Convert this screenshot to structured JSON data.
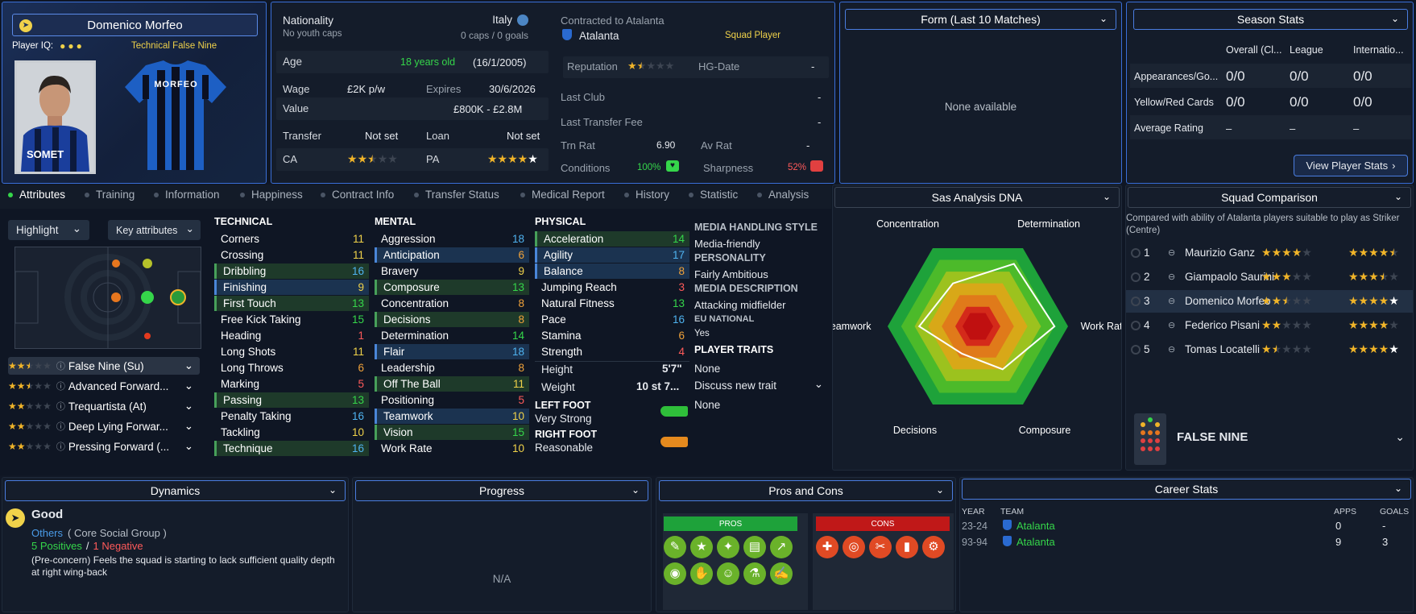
{
  "player": {
    "name": "Domenico Morfeo",
    "iq_label": "Player IQ:",
    "position_label": "Technical False Nine",
    "shirt_name": "MORFEO"
  },
  "nationality": {
    "label": "Nationality",
    "value": "Italy",
    "youth": "No youth caps",
    "caps": "0 caps / 0 goals"
  },
  "contract": {
    "label": "Contracted to Atalanta",
    "club": "Atalanta",
    "status": "Squad Player"
  },
  "info": {
    "age_label": "Age",
    "age_value": "18 years old",
    "dob": "(16/1/2005)",
    "wage_label": "Wage",
    "wage": "£2K p/w",
    "expires_label": "Expires",
    "expires": "30/6/2026",
    "value_label": "Value",
    "value": "£800K - £2.8M",
    "transfer_label": "Transfer",
    "transfer": "Not set",
    "loan_label": "Loan",
    "loan": "Not set",
    "ca_label": "CA",
    "pa_label": "PA",
    "ca_stars": 2.5,
    "pa_stars": 5
  },
  "club_info": {
    "reputation_label": "Reputation",
    "reputation_stars": 1.5,
    "hg_label": "HG-Date",
    "hg_value": "-",
    "last_club_label": "Last Club",
    "last_club": "-",
    "fee_label": "Last Transfer Fee",
    "fee": "-",
    "trn_label": "Trn Rat",
    "trn": "6.90",
    "av_label": "Av Rat",
    "av": "-",
    "cond_label": "Conditions",
    "cond": "100%",
    "sharp_label": "Sharpness",
    "sharp": "52%"
  },
  "form": {
    "title": "Form (Last 10 Matches)",
    "empty": "None available"
  },
  "season": {
    "title": "Season Stats",
    "headers": [
      "Overall (Cl...",
      "League",
      "Internatio..."
    ],
    "rows": [
      {
        "label": "Appearances/Go...",
        "values": [
          "0/0",
          "0/0",
          "0/0"
        ]
      },
      {
        "label": "Yellow/Red Cards",
        "values": [
          "0/0",
          "0/0",
          "0/0"
        ]
      },
      {
        "label": "Average Rating",
        "values": [
          "–",
          "–",
          "–"
        ]
      }
    ],
    "button": "View Player Stats"
  },
  "tabs": [
    "Attributes",
    "Training",
    "Information",
    "Happiness",
    "Contract Info",
    "Transfer Status",
    "Medical Report",
    "History",
    "Statistic",
    "Analysis"
  ],
  "controls": {
    "highlight": "Highlight",
    "key": "Key attributes"
  },
  "technical": {
    "title": "TECHNICAL",
    "items": [
      {
        "n": "Corners",
        "v": "11"
      },
      {
        "n": "Crossing",
        "v": "11"
      },
      {
        "n": "Dribbling",
        "v": "16"
      },
      {
        "n": "Finishing",
        "v": "9"
      },
      {
        "n": "First Touch",
        "v": "13"
      },
      {
        "n": "Free Kick Taking",
        "v": "15"
      },
      {
        "n": "Heading",
        "v": "1"
      },
      {
        "n": "Long Shots",
        "v": "11"
      },
      {
        "n": "Long Throws",
        "v": "6"
      },
      {
        "n": "Marking",
        "v": "5"
      },
      {
        "n": "Passing",
        "v": "13"
      },
      {
        "n": "Penalty Taking",
        "v": "16"
      },
      {
        "n": "Tackling",
        "v": "10"
      },
      {
        "n": "Technique",
        "v": "16"
      }
    ]
  },
  "mental": {
    "title": "MENTAL",
    "items": [
      {
        "n": "Aggression",
        "v": "18"
      },
      {
        "n": "Anticipation",
        "v": "6"
      },
      {
        "n": "Bravery",
        "v": "9"
      },
      {
        "n": "Composure",
        "v": "13"
      },
      {
        "n": "Concentration",
        "v": "8"
      },
      {
        "n": "Decisions",
        "v": "8"
      },
      {
        "n": "Determination",
        "v": "14"
      },
      {
        "n": "Flair",
        "v": "18"
      },
      {
        "n": "Leadership",
        "v": "8"
      },
      {
        "n": "Off The Ball",
        "v": "11"
      },
      {
        "n": "Positioning",
        "v": "5"
      },
      {
        "n": "Teamwork",
        "v": "10"
      },
      {
        "n": "Vision",
        "v": "15"
      },
      {
        "n": "Work Rate",
        "v": "10"
      }
    ]
  },
  "physical": {
    "title": "PHYSICAL",
    "items": [
      {
        "n": "Acceleration",
        "v": "14"
      },
      {
        "n": "Agility",
        "v": "17"
      },
      {
        "n": "Balance",
        "v": "8"
      },
      {
        "n": "Jumping Reach",
        "v": "3"
      },
      {
        "n": "Natural Fitness",
        "v": "13"
      },
      {
        "n": "Pace",
        "v": "16"
      },
      {
        "n": "Stamina",
        "v": "6"
      },
      {
        "n": "Strength",
        "v": "4"
      }
    ],
    "height_label": "Height",
    "height": "5'7\"",
    "weight_label": "Weight",
    "weight": "10 st 7...",
    "left_label": "LEFT FOOT",
    "left": "Very Strong",
    "right_label": "RIGHT FOOT",
    "right": "Reasonable"
  },
  "media": {
    "h1": "MEDIA HANDLING STYLE",
    "v1": "Media-friendly",
    "h2": "PERSONALITY",
    "v2": "Fairly Ambitious",
    "h3": "MEDIA DESCRIPTION",
    "v3": "Attacking midfielder",
    "h4": "EU NATIONAL",
    "v4": "Yes",
    "h5": "PLAYER TRAITS",
    "v5": "None",
    "discuss": "Discuss new trait",
    "v6": "None"
  },
  "roles": [
    {
      "name": "False Nine (Su)",
      "stars": 2.5
    },
    {
      "name": "Advanced Forward...",
      "stars": 2.5
    },
    {
      "name": "Trequartista (At)",
      "stars": 2
    },
    {
      "name": "Deep Lying Forwar...",
      "stars": 2
    },
    {
      "name": "Pressing Forward (...",
      "stars": 2
    }
  ],
  "dna": {
    "title": "Sas Analysis DNA",
    "labels": [
      "Concentration",
      "Determination",
      "Work Rate",
      "Composure",
      "Decisions",
      "Teamwork"
    ],
    "values": [
      0.55,
      0.8,
      0.85,
      0.55,
      0.35,
      0.65
    ]
  },
  "squad": {
    "title": "Squad Comparison",
    "subtitle": "Compared with ability of Atalanta players suitable to play as Striker (Centre)",
    "rows": [
      {
        "rank": "1",
        "name": "Maurizio Ganz",
        "ca": 4,
        "pa": 4.5
      },
      {
        "rank": "2",
        "name": "Giampaolo Saurini",
        "ca": 3,
        "pa": 3.5
      },
      {
        "rank": "3",
        "name": "Domenico Morfeo",
        "ca": 2.5,
        "pa": 5
      },
      {
        "rank": "4",
        "name": "Federico Pisani",
        "ca": 2,
        "pa": 4
      },
      {
        "rank": "5",
        "name": "Tomas Locatelli",
        "ca": 1.5,
        "pa": 5
      }
    ],
    "position": "FALSE NINE"
  },
  "dynamics": {
    "title": "Dynamics",
    "status": "Good",
    "group": "Others",
    "group_name": "( Core Social Group )",
    "positives": "5 Positives",
    "negatives": "1 Negative",
    "note": "(Pre-concern) Feels the squad is starting to lack sufficient quality depth at right wing-back"
  },
  "progress": {
    "title": "Progress",
    "na": "N/A"
  },
  "proscons": {
    "title": "Pros and Cons",
    "pros": "PROS",
    "cons": "CONS"
  },
  "career": {
    "title": "Career Stats",
    "headers": [
      "YEAR",
      "TEAM",
      "APPS",
      "GOALS"
    ],
    "rows": [
      {
        "year": "23-24",
        "team": "Atalanta",
        "apps": "0",
        "goals": "-"
      },
      {
        "year": "93-94",
        "team": "Atalanta",
        "apps": "9",
        "goals": "3"
      }
    ]
  },
  "colors": {
    "accent": "#3a6fd8",
    "green": "#35d64a",
    "yellow": "#f0d24a",
    "red": "#ff5a5a"
  }
}
